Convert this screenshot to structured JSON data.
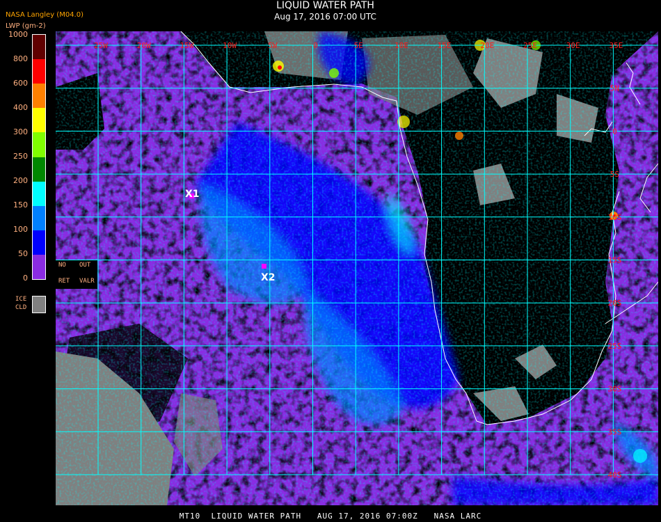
{
  "header": {
    "title": "LIQUID WATER PATH",
    "subtitle": "Aug 17, 2016 07:00 UTC",
    "provenance": "NASA Langley (M04.0)",
    "units": "LWP (gm-2)"
  },
  "legend": {
    "ticks": [
      "0",
      "50",
      "100",
      "150",
      "200",
      "250",
      "300",
      "400",
      "600",
      "800",
      "1000"
    ],
    "colors": [
      "#8a2be2",
      "#0000ff",
      "#0080ff",
      "#00ffff",
      "#008800",
      "#80ff00",
      "#ffff00",
      "#ff8000",
      "#ff0000",
      "#600000"
    ],
    "no_ret_line1": "NO",
    "no_ret_line2": "RET",
    "out_valr_line1": "OUT",
    "out_valr_line2": "VALR",
    "ice_line1": "ICE",
    "ice_line2": "CLD",
    "ice_color": "#808080"
  },
  "map": {
    "longitude_labels": [
      "25W",
      "20W",
      "15W",
      "10W",
      "5W",
      "0",
      "5E",
      "10E",
      "15E",
      "20E",
      "25E",
      "30E",
      "35E"
    ],
    "latitude_labels": [
      "10N",
      "5N",
      "0",
      "5S",
      "10S",
      "15S",
      "20S",
      "25S",
      "30S",
      "35S",
      "40S"
    ],
    "grid_color": "#00ffff",
    "coastline_color": "#ffffff",
    "markers": [
      {
        "label": "X1",
        "color": "#ff00ff"
      },
      {
        "label": "X2",
        "color": "#ff00ff"
      }
    ]
  },
  "footer": {
    "caption": "MT10  LIQUID WATER PATH   AUG 17, 2016 07:00Z   NASA LARC"
  }
}
